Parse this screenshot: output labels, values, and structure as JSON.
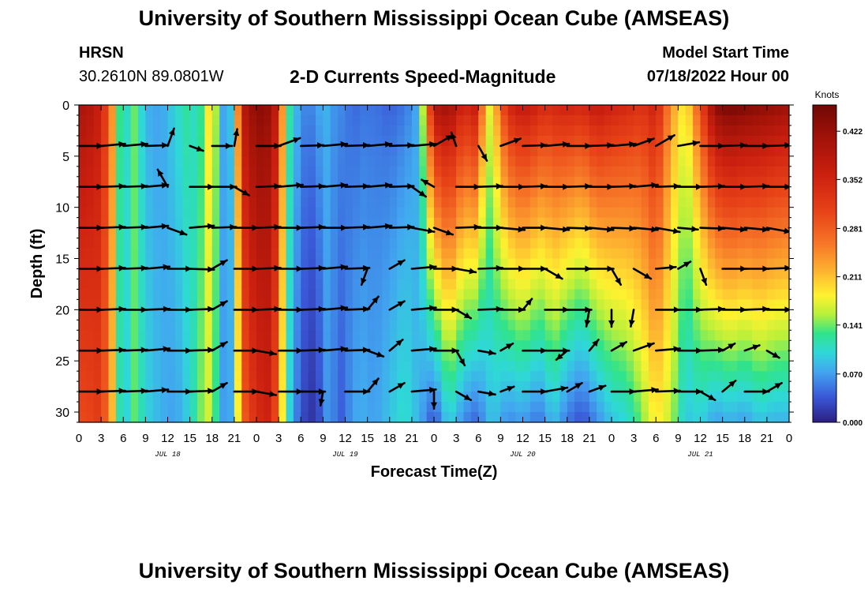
{
  "header": {
    "title": "University of Southern Mississippi Ocean Cube (AMSEAS)",
    "station": "HRSN",
    "coordinates": "30.2610N  89.0801W",
    "product": "2-D Currents Speed-Magnitude",
    "start_label": "Model Start Time",
    "start_value": "07/18/2022 Hour 00",
    "footer_title": "University of Southern Mississippi Ocean Cube (AMSEAS)"
  },
  "chart_data": {
    "type": "heatmap",
    "title": "2-D Currents Speed-Magnitude",
    "xlabel": "Forecast Time(Z)",
    "ylabel": "Depth (ft)",
    "x_range": [
      0,
      96
    ],
    "y_range": [
      0,
      31
    ],
    "y_inverted": true,
    "x_tick_labels": [
      "0",
      "3",
      "6",
      "9",
      "12",
      "15",
      "18",
      "21",
      "0",
      "3",
      "6",
      "9",
      "12",
      "15",
      "18",
      "21",
      "0",
      "3",
      "6",
      "9",
      "12",
      "15",
      "18",
      "21",
      "0",
      "3",
      "6",
      "9",
      "12",
      "15",
      "18",
      "21",
      "0"
    ],
    "y_ticks": [
      0,
      5,
      10,
      15,
      20,
      25,
      30
    ],
    "y_tick_labels": [
      "0",
      "5",
      "10",
      "15",
      "20",
      "25",
      "30"
    ],
    "day_labels": [
      {
        "hour": 12,
        "label": "JUL 18"
      },
      {
        "hour": 36,
        "label": "JUL 19"
      },
      {
        "hour": 60,
        "label": "JUL 20"
      },
      {
        "hour": 84,
        "label": "JUL 21"
      }
    ],
    "colorbar": {
      "units": "Knots",
      "ticks": [
        0.0,
        0.07,
        0.141,
        0.211,
        0.281,
        0.352,
        0.422
      ],
      "tick_labels": [
        "0.000",
        "0.070",
        "0.141",
        "0.211",
        "0.281",
        "0.352",
        "0.422"
      ],
      "range": [
        0,
        0.46
      ]
    },
    "speed_profile": {
      "hours": [
        0,
        1,
        3,
        5,
        6,
        7,
        9,
        11,
        13,
        15,
        16,
        17,
        18,
        19,
        20,
        21,
        22,
        24,
        26,
        27,
        28,
        30,
        32,
        33,
        34,
        35,
        36,
        37,
        38,
        40,
        42,
        44,
        46,
        48,
        50,
        52,
        54,
        55,
        56,
        58,
        60,
        62,
        63,
        64,
        66,
        68,
        70,
        72,
        74,
        76,
        78,
        80,
        82,
        84,
        86,
        88,
        90,
        92,
        94,
        96
      ],
      "surface": [
        0.4,
        0.4,
        0.36,
        0.2,
        0.06,
        0.16,
        0.08,
        0.07,
        0.1,
        0.13,
        0.09,
        0.16,
        0.22,
        0.09,
        0.06,
        0.12,
        0.38,
        0.44,
        0.42,
        0.34,
        0.14,
        0.06,
        0.06,
        0.09,
        0.07,
        0.06,
        0.06,
        0.04,
        0.05,
        0.05,
        0.04,
        0.05,
        0.08,
        0.4,
        0.42,
        0.35,
        0.38,
        0.16,
        0.2,
        0.35,
        0.38,
        0.36,
        0.34,
        0.35,
        0.36,
        0.35,
        0.38,
        0.36,
        0.35,
        0.33,
        0.36,
        0.24,
        0.18,
        0.3,
        0.44,
        0.46,
        0.45,
        0.44,
        0.43,
        0.42
      ],
      "bottom": [
        0.3,
        0.3,
        0.32,
        0.18,
        0.05,
        0.15,
        0.1,
        0.08,
        0.07,
        0.1,
        0.13,
        0.16,
        0.17,
        0.08,
        0.06,
        0.09,
        0.27,
        0.34,
        0.36,
        0.25,
        0.12,
        0.03,
        0.01,
        0.05,
        0.08,
        0.03,
        0.05,
        0.07,
        0.08,
        0.07,
        0.09,
        0.11,
        0.08,
        0.03,
        0.1,
        0.06,
        0.04,
        0.08,
        0.09,
        0.06,
        0.07,
        0.05,
        0.06,
        0.09,
        0.05,
        0.03,
        0.06,
        0.09,
        0.1,
        0.14,
        0.19,
        0.16,
        0.09,
        0.1,
        0.07,
        0.08,
        0.07,
        0.09,
        0.08,
        0.08
      ]
    },
    "vector_depths": [
      4,
      8,
      12,
      16,
      20,
      24,
      28
    ],
    "vectors": [
      [
        0,
        4,
        90,
        0.85
      ],
      [
        3,
        4,
        85,
        0.85
      ],
      [
        6,
        4,
        85,
        0.85
      ],
      [
        9,
        4,
        88,
        0.8
      ],
      [
        12,
        4,
        20,
        0.65
      ],
      [
        15,
        4,
        110,
        0.5
      ],
      [
        18,
        4,
        90,
        0.7
      ],
      [
        21,
        4,
        10,
        0.6
      ],
      [
        24,
        4,
        90,
        0.85
      ],
      [
        27,
        4,
        70,
        0.8
      ],
      [
        30,
        4,
        88,
        0.8
      ],
      [
        33,
        4,
        85,
        0.85
      ],
      [
        36,
        4,
        88,
        0.85
      ],
      [
        39,
        4,
        85,
        0.85
      ],
      [
        42,
        4,
        88,
        0.85
      ],
      [
        45,
        4,
        85,
        0.85
      ],
      [
        48,
        4,
        60,
        0.75
      ],
      [
        51,
        4,
        340,
        0.5
      ],
      [
        54,
        4,
        150,
        0.6
      ],
      [
        57,
        4,
        70,
        0.75
      ],
      [
        60,
        4,
        88,
        0.85
      ],
      [
        63,
        4,
        85,
        0.85
      ],
      [
        66,
        4,
        90,
        0.85
      ],
      [
        69,
        4,
        88,
        0.85
      ],
      [
        72,
        4,
        85,
        0.85
      ],
      [
        75,
        4,
        70,
        0.75
      ],
      [
        78,
        4,
        60,
        0.75
      ],
      [
        81,
        4,
        80,
        0.75
      ],
      [
        84,
        4,
        90,
        0.85
      ],
      [
        87,
        4,
        88,
        0.85
      ],
      [
        90,
        4,
        90,
        0.85
      ],
      [
        93,
        4,
        88,
        0.85
      ],
      [
        96,
        4,
        85,
        0.85
      ],
      [
        0,
        8,
        90,
        0.85
      ],
      [
        3,
        8,
        88,
        0.85
      ],
      [
        6,
        8,
        88,
        0.85
      ],
      [
        9,
        8,
        85,
        0.8
      ],
      [
        12,
        8,
        330,
        0.7
      ],
      [
        15,
        8,
        90,
        0.85
      ],
      [
        18,
        8,
        90,
        0.85
      ],
      [
        21,
        8,
        120,
        0.6
      ],
      [
        24,
        8,
        88,
        0.85
      ],
      [
        27,
        8,
        85,
        0.85
      ],
      [
        30,
        8,
        88,
        0.85
      ],
      [
        33,
        8,
        85,
        0.85
      ],
      [
        36,
        8,
        88,
        0.85
      ],
      [
        39,
        8,
        85,
        0.85
      ],
      [
        42,
        8,
        88,
        0.85
      ],
      [
        45,
        8,
        125,
        0.6
      ],
      [
        48,
        8,
        300,
        0.5
      ],
      [
        51,
        8,
        90,
        0.85
      ],
      [
        54,
        8,
        88,
        0.85
      ],
      [
        57,
        8,
        90,
        0.85
      ],
      [
        60,
        8,
        88,
        0.85
      ],
      [
        63,
        8,
        90,
        0.85
      ],
      [
        66,
        8,
        88,
        0.85
      ],
      [
        69,
        8,
        90,
        0.85
      ],
      [
        72,
        8,
        88,
        0.85
      ],
      [
        75,
        8,
        85,
        0.85
      ],
      [
        78,
        8,
        88,
        0.85
      ],
      [
        81,
        8,
        90,
        0.85
      ],
      [
        84,
        8,
        88,
        0.85
      ],
      [
        87,
        8,
        90,
        0.85
      ],
      [
        90,
        8,
        88,
        0.85
      ],
      [
        93,
        8,
        90,
        0.85
      ],
      [
        96,
        8,
        88,
        0.85
      ],
      [
        0,
        12,
        90,
        0.85
      ],
      [
        3,
        12,
        88,
        0.85
      ],
      [
        6,
        12,
        88,
        0.85
      ],
      [
        9,
        12,
        85,
        0.8
      ],
      [
        12,
        12,
        110,
        0.7
      ],
      [
        15,
        12,
        85,
        0.85
      ],
      [
        18,
        12,
        88,
        0.85
      ],
      [
        21,
        12,
        90,
        0.85
      ],
      [
        24,
        12,
        88,
        0.85
      ],
      [
        27,
        12,
        90,
        0.85
      ],
      [
        30,
        12,
        88,
        0.85
      ],
      [
        33,
        12,
        90,
        0.85
      ],
      [
        36,
        12,
        88,
        0.85
      ],
      [
        39,
        12,
        85,
        0.85
      ],
      [
        42,
        12,
        88,
        0.85
      ],
      [
        45,
        12,
        100,
        0.8
      ],
      [
        48,
        12,
        110,
        0.7
      ],
      [
        51,
        12,
        88,
        0.85
      ],
      [
        54,
        12,
        90,
        0.85
      ],
      [
        57,
        12,
        95,
        0.85
      ],
      [
        60,
        12,
        90,
        0.85
      ],
      [
        63,
        12,
        95,
        0.85
      ],
      [
        66,
        12,
        92,
        0.85
      ],
      [
        69,
        12,
        95,
        0.85
      ],
      [
        72,
        12,
        92,
        0.85
      ],
      [
        75,
        12,
        95,
        0.85
      ],
      [
        78,
        12,
        100,
        0.85
      ],
      [
        81,
        12,
        95,
        0.7
      ],
      [
        84,
        12,
        92,
        0.85
      ],
      [
        87,
        12,
        95,
        0.85
      ],
      [
        90,
        12,
        95,
        0.85
      ],
      [
        93,
        12,
        100,
        0.85
      ],
      [
        96,
        12,
        95,
        0.85
      ],
      [
        0,
        16,
        90,
        0.85
      ],
      [
        3,
        16,
        88,
        0.85
      ],
      [
        6,
        16,
        88,
        0.85
      ],
      [
        9,
        16,
        85,
        0.85
      ],
      [
        12,
        16,
        90,
        0.85
      ],
      [
        15,
        16,
        92,
        0.85
      ],
      [
        18,
        16,
        60,
        0.6
      ],
      [
        21,
        16,
        90,
        0.85
      ],
      [
        24,
        16,
        88,
        0.85
      ],
      [
        27,
        16,
        90,
        0.85
      ],
      [
        30,
        16,
        88,
        0.85
      ],
      [
        33,
        16,
        85,
        0.85
      ],
      [
        36,
        16,
        88,
        0.85
      ],
      [
        39,
        16,
        200,
        0.6
      ],
      [
        42,
        16,
        60,
        0.6
      ],
      [
        45,
        16,
        85,
        0.85
      ],
      [
        48,
        16,
        90,
        0.85
      ],
      [
        51,
        16,
        100,
        0.7
      ],
      [
        54,
        16,
        88,
        0.85
      ],
      [
        57,
        16,
        90,
        0.85
      ],
      [
        60,
        16,
        90,
        0.85
      ],
      [
        63,
        16,
        120,
        0.7
      ],
      [
        66,
        16,
        90,
        0.85
      ],
      [
        69,
        16,
        90,
        0.85
      ],
      [
        72,
        16,
        150,
        0.65
      ],
      [
        75,
        16,
        120,
        0.7
      ],
      [
        78,
        16,
        85,
        0.7
      ],
      [
        81,
        16,
        60,
        0.5
      ],
      [
        84,
        16,
        160,
        0.6
      ],
      [
        87,
        16,
        90,
        0.85
      ],
      [
        90,
        16,
        90,
        0.85
      ],
      [
        93,
        16,
        88,
        0.85
      ],
      [
        96,
        16,
        120,
        0.6
      ],
      [
        0,
        20,
        90,
        0.85
      ],
      [
        3,
        20,
        88,
        0.85
      ],
      [
        6,
        20,
        90,
        0.85
      ],
      [
        9,
        20,
        88,
        0.85
      ],
      [
        12,
        20,
        90,
        0.85
      ],
      [
        15,
        20,
        88,
        0.85
      ],
      [
        18,
        20,
        60,
        0.6
      ],
      [
        21,
        20,
        90,
        0.85
      ],
      [
        24,
        20,
        88,
        0.85
      ],
      [
        27,
        20,
        90,
        0.85
      ],
      [
        30,
        20,
        88,
        0.85
      ],
      [
        33,
        20,
        85,
        0.85
      ],
      [
        36,
        20,
        88,
        0.85
      ],
      [
        39,
        20,
        40,
        0.6
      ],
      [
        42,
        20,
        60,
        0.6
      ],
      [
        45,
        20,
        85,
        0.85
      ],
      [
        48,
        20,
        90,
        0.85
      ],
      [
        51,
        20,
        120,
        0.6
      ],
      [
        54,
        20,
        88,
        0.85
      ],
      [
        57,
        20,
        90,
        0.85
      ],
      [
        60,
        20,
        40,
        0.5
      ],
      [
        63,
        20,
        90,
        0.85
      ],
      [
        66,
        20,
        90,
        0.85
      ],
      [
        69,
        20,
        190,
        0.6
      ],
      [
        72,
        20,
        180,
        0.6
      ],
      [
        75,
        20,
        190,
        0.6
      ],
      [
        78,
        20,
        90,
        0.85
      ],
      [
        81,
        20,
        90,
        0.85
      ],
      [
        84,
        20,
        88,
        0.85
      ],
      [
        87,
        20,
        90,
        0.85
      ],
      [
        90,
        20,
        88,
        0.85
      ],
      [
        93,
        20,
        90,
        0.85
      ],
      [
        96,
        20,
        45,
        0.6
      ],
      [
        0,
        24,
        90,
        0.85
      ],
      [
        3,
        24,
        88,
        0.85
      ],
      [
        6,
        24,
        88,
        0.85
      ],
      [
        9,
        24,
        85,
        0.85
      ],
      [
        12,
        24,
        90,
        0.85
      ],
      [
        15,
        24,
        88,
        0.85
      ],
      [
        18,
        24,
        60,
        0.6
      ],
      [
        21,
        24,
        90,
        0.85
      ],
      [
        24,
        24,
        100,
        0.7
      ],
      [
        27,
        24,
        90,
        0.85
      ],
      [
        30,
        24,
        88,
        0.85
      ],
      [
        33,
        24,
        85,
        0.85
      ],
      [
        36,
        24,
        88,
        0.85
      ],
      [
        39,
        24,
        110,
        0.6
      ],
      [
        42,
        24,
        50,
        0.6
      ],
      [
        45,
        24,
        85,
        0.85
      ],
      [
        48,
        24,
        90,
        0.85
      ],
      [
        51,
        24,
        150,
        0.6
      ],
      [
        54,
        24,
        100,
        0.6
      ],
      [
        57,
        24,
        60,
        0.5
      ],
      [
        60,
        24,
        90,
        0.85
      ],
      [
        63,
        24,
        90,
        0.85
      ],
      [
        66,
        24,
        230,
        0.5
      ],
      [
        69,
        24,
        40,
        0.5
      ],
      [
        72,
        24,
        60,
        0.6
      ],
      [
        75,
        24,
        70,
        0.75
      ],
      [
        78,
        24,
        85,
        0.85
      ],
      [
        81,
        24,
        90,
        0.85
      ],
      [
        84,
        24,
        88,
        0.85
      ],
      [
        87,
        24,
        60,
        0.5
      ],
      [
        90,
        24,
        70,
        0.55
      ],
      [
        93,
        24,
        120,
        0.5
      ],
      [
        96,
        24,
        60,
        0.6
      ],
      [
        0,
        28,
        90,
        0.85
      ],
      [
        3,
        28,
        88,
        0.85
      ],
      [
        6,
        28,
        88,
        0.85
      ],
      [
        9,
        28,
        85,
        0.8
      ],
      [
        12,
        28,
        90,
        0.85
      ],
      [
        15,
        28,
        88,
        0.85
      ],
      [
        18,
        28,
        60,
        0.6
      ],
      [
        21,
        28,
        90,
        0.85
      ],
      [
        24,
        28,
        100,
        0.7
      ],
      [
        27,
        28,
        90,
        0.85
      ],
      [
        30,
        28,
        90,
        0.85
      ],
      [
        33,
        28,
        190,
        0.5
      ],
      [
        36,
        28,
        90,
        0.85
      ],
      [
        39,
        28,
        40,
        0.6
      ],
      [
        42,
        28,
        60,
        0.6
      ],
      [
        45,
        28,
        85,
        0.85
      ],
      [
        48,
        28,
        180,
        0.6
      ],
      [
        51,
        28,
        120,
        0.6
      ],
      [
        54,
        28,
        100,
        0.6
      ],
      [
        57,
        28,
        70,
        0.5
      ],
      [
        60,
        28,
        90,
        0.85
      ],
      [
        63,
        28,
        80,
        0.8
      ],
      [
        66,
        28,
        60,
        0.6
      ],
      [
        69,
        28,
        70,
        0.6
      ],
      [
        72,
        28,
        90,
        0.85
      ],
      [
        75,
        28,
        85,
        0.85
      ],
      [
        78,
        28,
        88,
        0.85
      ],
      [
        81,
        28,
        90,
        0.85
      ],
      [
        84,
        28,
        120,
        0.6
      ],
      [
        87,
        28,
        50,
        0.6
      ],
      [
        90,
        28,
        90,
        0.85
      ],
      [
        93,
        28,
        60,
        0.6
      ],
      [
        96,
        28,
        120,
        0.6
      ]
    ]
  }
}
